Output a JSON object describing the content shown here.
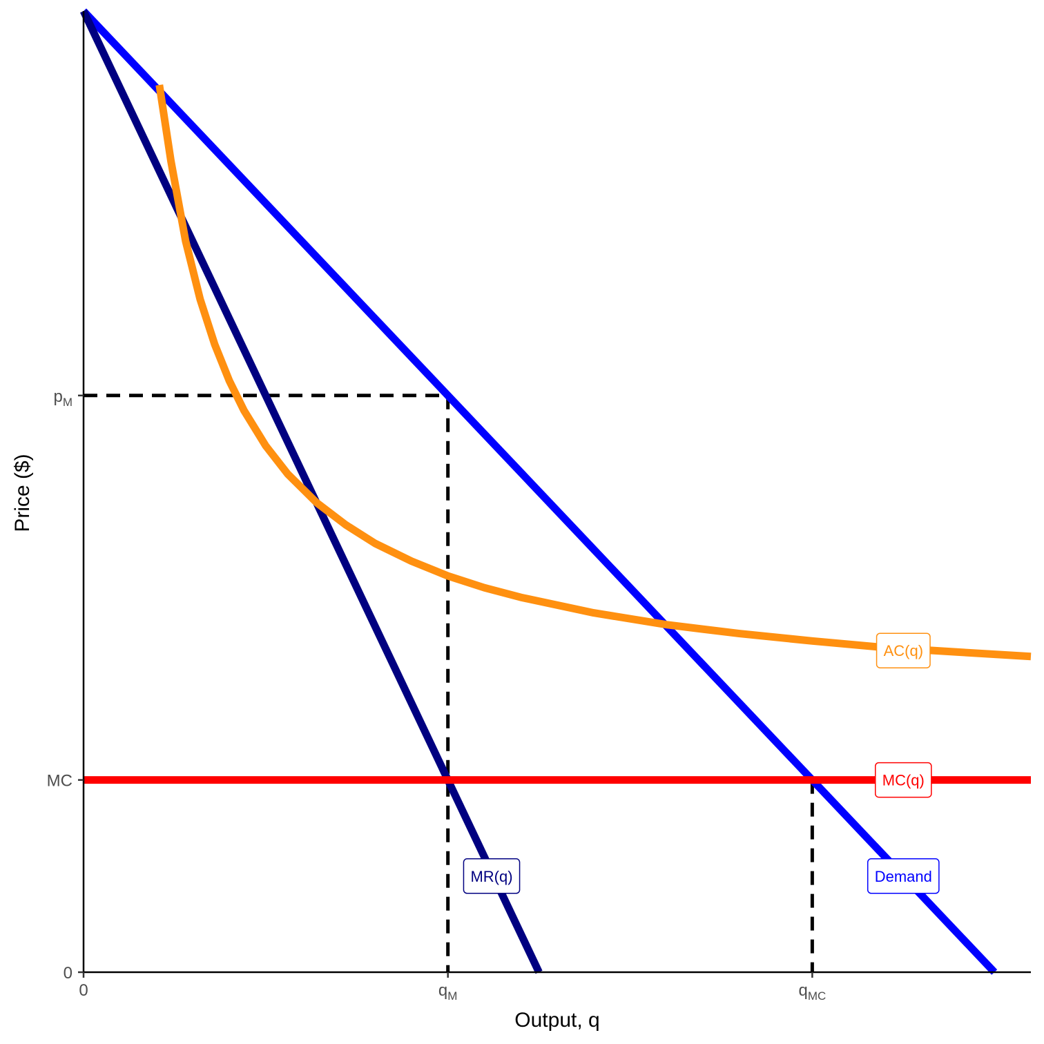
{
  "chart_data": {
    "type": "line",
    "title": "",
    "xlabel": "Output, q",
    "ylabel": "Price ($)",
    "xlim": [
      0,
      1.3
    ],
    "ylim": [
      0,
      1.3
    ],
    "grid": false,
    "x_ticks": [
      {
        "value": 0,
        "base": "0",
        "sub": ""
      },
      {
        "value": 0.5,
        "base": "q",
        "sub": "M"
      },
      {
        "value": 1.0,
        "base": "q",
        "sub": "MC"
      }
    ],
    "y_ticks": [
      {
        "value": 0,
        "base": "0",
        "sub": ""
      },
      {
        "value": 0.26,
        "base": "MC",
        "sub": ""
      },
      {
        "value": 0.78,
        "base": "p",
        "sub": "M"
      }
    ],
    "series": [
      {
        "name": "Demand",
        "label": "Demand",
        "color": "#0000ff",
        "x": [
          0,
          1.25
        ],
        "y": [
          1.3,
          0
        ],
        "label_at": [
          1.125,
          0.13
        ]
      },
      {
        "name": "MR(q)",
        "label": "MR(q)",
        "color": "#000080",
        "x": [
          0,
          0.625
        ],
        "y": [
          1.3,
          0
        ],
        "label_at": [
          0.56,
          0.13
        ]
      },
      {
        "name": "MC(q)",
        "label": "MC(q)",
        "color": "#ff0000",
        "x": [
          0,
          1.3
        ],
        "y": [
          0.26,
          0.26
        ],
        "label_at": [
          1.125,
          0.26
        ]
      },
      {
        "name": "AC(q)",
        "label": "AC(q)",
        "color": "#ff9010",
        "x": [
          0.104,
          0.12,
          0.14,
          0.16,
          0.18,
          0.2,
          0.22,
          0.25,
          0.28,
          0.32,
          0.36,
          0.4,
          0.45,
          0.5,
          0.55,
          0.6,
          0.7,
          0.8,
          0.9,
          1.0,
          1.1,
          1.2,
          1.3
        ],
        "y": [
          1.2,
          1.097,
          0.989,
          0.91,
          0.849,
          0.8,
          0.76,
          0.712,
          0.674,
          0.635,
          0.605,
          0.58,
          0.556,
          0.536,
          0.52,
          0.507,
          0.486,
          0.47,
          0.458,
          0.448,
          0.439,
          0.433,
          0.427
        ],
        "label_at": [
          1.125,
          0.435
        ]
      }
    ],
    "reference_lines": [
      {
        "from": [
          0,
          0.78
        ],
        "to": [
          0.5,
          0.78
        ]
      },
      {
        "from": [
          0.5,
          0.78
        ],
        "to": [
          0.5,
          0
        ]
      },
      {
        "from": [
          1.0,
          0.26
        ],
        "to": [
          1.0,
          0
        ]
      }
    ]
  }
}
